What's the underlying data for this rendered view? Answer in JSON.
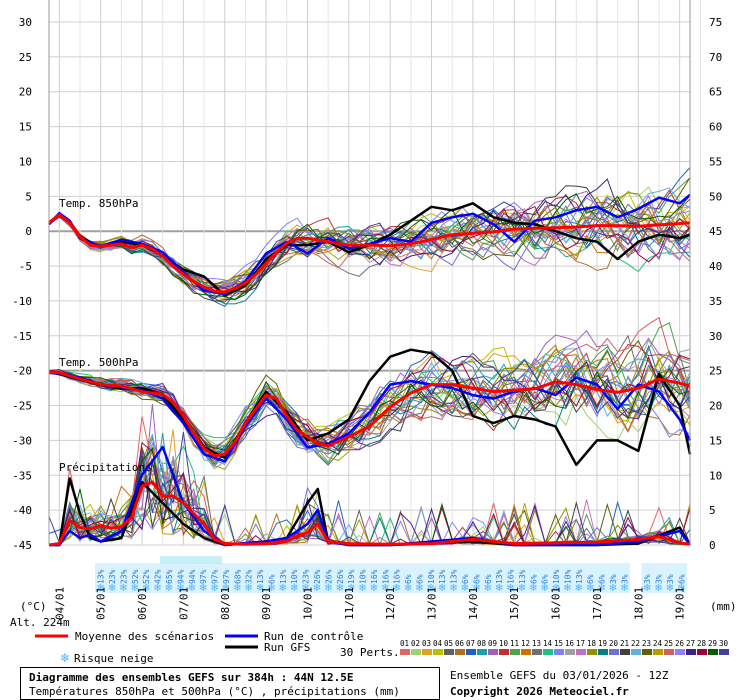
{
  "chart_data": {
    "type": "line",
    "title": "Diagramme des ensembles GEFS sur 384h : 44N 12.5E",
    "subtitle": "Températures 850hPa et 500hPa (°C) , précipitations (mm)",
    "run_info": "Ensemble GEFS du 03/01/2026 - 12Z",
    "copyright": "Copyright 2026 Meteociel.fr",
    "y_left_unit": "(°C)",
    "y_right_unit": "(mm)",
    "altitude": "Alt. 224m",
    "y_left_ticks": [
      "30",
      "25",
      "20",
      "15",
      "10",
      "5",
      "0",
      "-5",
      "-10",
      "-15",
      "-20",
      "-25",
      "-30",
      "-35",
      "-40",
      "-45"
    ],
    "y_right_ticks": [
      "75",
      "70",
      "65",
      "60",
      "55",
      "50",
      "45",
      "40",
      "35",
      "30",
      "25",
      "20",
      "15",
      "10",
      "5",
      "0"
    ],
    "ylim": [
      -45,
      30
    ],
    "x_start_day": 3.75,
    "x_end_day": 19.25,
    "x_ticks": [
      "04/01",
      "05/01",
      "06/01",
      "07/01",
      "08/01",
      "09/01",
      "10/01",
      "11/01",
      "12/01",
      "13/01",
      "14/01",
      "15/01",
      "16/01",
      "17/01",
      "18/01",
      "19/01"
    ],
    "section_labels": {
      "t850": "Temp. 850hPa",
      "t500": "Temp. 500hPa",
      "precip": "Précipitations"
    },
    "legend": {
      "mean": "Moyenne des scénarios",
      "control": "Run de contrôle",
      "gfs": "Run GFS",
      "perts": "30 Perts.",
      "snow": "Risque neige"
    },
    "pert_labels": [
      "01",
      "02",
      "03",
      "04",
      "05",
      "06",
      "07",
      "08",
      "09",
      "10",
      "11",
      "12",
      "13",
      "14",
      "15",
      "16",
      "17",
      "18",
      "19",
      "20",
      "21",
      "22",
      "23",
      "24",
      "25",
      "26",
      "27",
      "28",
      "29",
      "30"
    ],
    "colors": {
      "mean": "#ff0000",
      "control": "#0000ff",
      "gfs": "#000000",
      "snow": "#4fb3ff",
      "pert_colors": [
        "#e06666",
        "#a0d070",
        "#e0a020",
        "#c0c000",
        "#606060",
        "#b07020",
        "#2060c0",
        "#20a0a0",
        "#a060c0",
        "#c03030",
        "#50a050",
        "#d07000",
        "#707070",
        "#20c080",
        "#8080ff",
        "#a0a0a0",
        "#c070c0",
        "#909000",
        "#008080",
        "#7070d0",
        "#404040",
        "#60b0e0",
        "#606000",
        "#b0a000",
        "#d06060",
        "#9080ff",
        "#402080",
        "#a00040",
        "#006000",
        "#4040a0"
      ]
    },
    "snow_risk": [
      "13%",
      "23%",
      "23%",
      "52%",
      "52%",
      "42%",
      "65%",
      "94%",
      "94%",
      "97%",
      "97%",
      "97%",
      "68%",
      "32%",
      "13%",
      "6%",
      "13%",
      "10%",
      "23%",
      "26%",
      "26%",
      "26%",
      "19%",
      "10%",
      "16%",
      "16%",
      "16%",
      "6%",
      "6%",
      "10%",
      "13%",
      "13%",
      "6%",
      "6%",
      "6%",
      "13%",
      "16%",
      "13%",
      "6%",
      "6%",
      "10%",
      "10%",
      "13%",
      "6%",
      "6%",
      "3%",
      "3%",
      "",
      "3%",
      "3%",
      "3%",
      "6%"
    ],
    "series": [
      {
        "name": "Moyenne des scénarios",
        "group": "t850",
        "x": [
          3.75,
          4.0,
          4.25,
          4.5,
          4.75,
          5.0,
          5.25,
          5.5,
          5.75,
          6.0,
          6.25,
          6.5,
          6.75,
          7.0,
          7.25,
          7.5,
          7.75,
          8.0,
          8.25,
          8.5,
          8.75,
          9.0,
          9.25,
          9.5,
          9.75,
          10.0,
          10.25,
          10.5,
          10.75,
          11.0,
          11.5,
          12.0,
          12.5,
          13.0,
          13.5,
          14.0,
          14.5,
          15.0,
          15.5,
          16.0,
          16.5,
          17.0,
          17.5,
          18.0,
          18.5,
          19.0,
          19.25
        ],
        "values": [
          1.2,
          2.4,
          1.2,
          -0.8,
          -2.0,
          -2.2,
          -2.0,
          -1.8,
          -2.4,
          -2.0,
          -2.6,
          -3.6,
          -5.0,
          -6.2,
          -7.2,
          -8.0,
          -8.6,
          -8.7,
          -8.2,
          -7.4,
          -6.2,
          -4.6,
          -3.0,
          -1.7,
          -1.0,
          -1.0,
          -1.3,
          -1.5,
          -1.8,
          -2.0,
          -2.0,
          -2.1,
          -1.8,
          -1.2,
          -0.5,
          -0.3,
          -0.1,
          0.3,
          0.4,
          0.5,
          0.6,
          0.8,
          0.8,
          0.7,
          0.9,
          1.1,
          1.2
        ]
      },
      {
        "name": "Run de contrôle",
        "group": "t850",
        "x": [
          3.75,
          4.0,
          4.25,
          4.5,
          5.0,
          5.5,
          6.0,
          6.5,
          7.0,
          7.5,
          8.0,
          8.5,
          9.0,
          9.5,
          10.0,
          10.5,
          11.0,
          11.5,
          12.0,
          12.5,
          13.0,
          13.5,
          14.0,
          14.5,
          15.0,
          15.5,
          16.0,
          16.5,
          17.0,
          17.5,
          18.0,
          18.5,
          19.0,
          19.25
        ],
        "values": [
          1.0,
          2.6,
          1.5,
          -1.0,
          -2.2,
          -1.2,
          -1.8,
          -3.0,
          -6.0,
          -8.5,
          -9.0,
          -7.2,
          -3.2,
          -1.5,
          -3.2,
          -1.0,
          -2.5,
          -1.8,
          -1.0,
          -1.5,
          1.2,
          2.0,
          2.5,
          1.0,
          -1.5,
          1.5,
          2.0,
          3.0,
          3.5,
          2.0,
          3.2,
          4.8,
          4.0,
          5.2
        ]
      },
      {
        "name": "Run GFS",
        "group": "t850",
        "x": [
          3.75,
          4.0,
          4.25,
          4.5,
          5.0,
          5.5,
          6.0,
          6.5,
          7.0,
          7.5,
          8.0,
          8.5,
          9.0,
          9.5,
          10.0,
          10.5,
          11.0,
          11.5,
          12.0,
          12.5,
          13.0,
          13.5,
          14.0,
          14.5,
          15.0,
          15.5,
          16.0,
          16.5,
          17.0,
          17.5,
          18.0,
          18.5,
          19.0,
          19.25
        ],
        "values": [
          1.0,
          2.5,
          1.4,
          -0.8,
          -2.3,
          -1.5,
          -2.0,
          -3.5,
          -5.5,
          -6.5,
          -9.2,
          -7.8,
          -4.0,
          -2.0,
          -2.0,
          -1.5,
          -3.0,
          -2.0,
          -0.5,
          1.5,
          3.5,
          3.0,
          4.0,
          2.0,
          1.2,
          1.0,
          0.0,
          -1.0,
          -1.5,
          -4.0,
          -1.5,
          -0.5,
          -1.0,
          -0.5
        ]
      },
      {
        "name": "Moyenne des scénarios",
        "group": "t500",
        "x": [
          3.75,
          4.0,
          4.5,
          5.0,
          5.5,
          6.0,
          6.5,
          6.75,
          7.0,
          7.25,
          7.5,
          7.75,
          8.0,
          8.25,
          8.5,
          8.75,
          9.0,
          9.25,
          9.5,
          9.75,
          10.0,
          10.25,
          10.5,
          11.0,
          11.5,
          12.0,
          12.5,
          13.0,
          13.5,
          14.0,
          14.5,
          15.0,
          15.5,
          16.0,
          16.5,
          17.0,
          17.5,
          18.0,
          18.5,
          19.0,
          19.25
        ],
        "values": [
          -20.2,
          -20.3,
          -21.2,
          -22.0,
          -22.2,
          -23.0,
          -23.4,
          -24.5,
          -26.5,
          -29.0,
          -31.2,
          -32.2,
          -32.0,
          -30.2,
          -27.5,
          -25.5,
          -23.5,
          -24.0,
          -26.5,
          -28.5,
          -29.5,
          -30.5,
          -30.8,
          -29.5,
          -28.0,
          -25.2,
          -23.2,
          -22.0,
          -22.0,
          -22.5,
          -23.0,
          -22.8,
          -22.6,
          -21.6,
          -22.0,
          -22.7,
          -23.1,
          -22.5,
          -21.2,
          -21.8,
          -22.2
        ]
      },
      {
        "name": "Run de contrôle",
        "group": "t500",
        "x": [
          3.75,
          4.0,
          4.5,
          5.0,
          5.5,
          6.0,
          6.5,
          7.0,
          7.5,
          8.0,
          8.5,
          9.0,
          9.5,
          10.0,
          10.5,
          11.0,
          11.5,
          12.0,
          12.5,
          13.0,
          13.5,
          14.0,
          14.5,
          15.0,
          15.5,
          16.0,
          16.5,
          17.0,
          17.5,
          18.0,
          18.5,
          19.0,
          19.25
        ],
        "values": [
          -20.3,
          -20.4,
          -21.0,
          -22.0,
          -22.4,
          -22.8,
          -24.0,
          -27.5,
          -32.0,
          -33.0,
          -28.0,
          -24.0,
          -27.0,
          -31.0,
          -30.5,
          -29.0,
          -26.0,
          -22.0,
          -21.5,
          -22.0,
          -22.5,
          -23.5,
          -24.0,
          -23.0,
          -22.5,
          -23.5,
          -21.0,
          -22.0,
          -25.5,
          -22.0,
          -23.0,
          -27.0,
          -30.0
        ]
      },
      {
        "name": "Run GFS",
        "group": "t500",
        "x": [
          3.75,
          4.0,
          4.5,
          5.0,
          5.5,
          6.0,
          6.5,
          7.0,
          7.5,
          8.0,
          8.5,
          9.0,
          9.5,
          10.0,
          10.5,
          11.0,
          11.5,
          12.0,
          12.5,
          13.0,
          13.5,
          14.0,
          14.5,
          15.0,
          15.5,
          16.0,
          16.5,
          17.0,
          17.5,
          18.0,
          18.5,
          19.0,
          19.25
        ],
        "values": [
          -20.2,
          -20.5,
          -21.3,
          -22.1,
          -22.6,
          -22.5,
          -23.5,
          -27.0,
          -31.0,
          -32.5,
          -27.5,
          -23.0,
          -26.0,
          -30.0,
          -29.0,
          -27.0,
          -21.5,
          -18.0,
          -17.0,
          -17.5,
          -20.0,
          -26.5,
          -27.5,
          -26.5,
          -27.0,
          -28.0,
          -33.5,
          -30.0,
          -30.0,
          -31.5,
          -20.5,
          -25.0,
          -32.0
        ]
      },
      {
        "name": "Moyenne des scénarios",
        "group": "precip",
        "axis": "right",
        "x": [
          3.75,
          4.0,
          4.25,
          4.5,
          4.75,
          5.0,
          5.25,
          5.5,
          5.75,
          6.0,
          6.25,
          6.5,
          6.75,
          7.0,
          7.25,
          7.5,
          7.75,
          8.0,
          8.5,
          9.0,
          9.5,
          10.0,
          10.25,
          10.5,
          11.0,
          12.0,
          13.0,
          14.0,
          15.0,
          16.0,
          17.0,
          18.0,
          18.5,
          19.0,
          19.25
        ],
        "values": [
          0,
          0.2,
          3.5,
          2.5,
          2.3,
          2.8,
          2.4,
          2.6,
          4.0,
          8.4,
          9.0,
          7.0,
          7.0,
          6.0,
          4.5,
          3.0,
          0.8,
          0.2,
          0.1,
          0.2,
          0.6,
          1.8,
          3.0,
          0.5,
          0.2,
          0.1,
          0.2,
          0.8,
          0.2,
          0.3,
          0.4,
          0.8,
          1.2,
          0.3,
          0.1
        ]
      },
      {
        "name": "Run de contrôle",
        "group": "precip",
        "axis": "right",
        "x": [
          3.75,
          4.0,
          4.25,
          4.5,
          4.75,
          5.0,
          5.5,
          6.0,
          6.5,
          7.0,
          7.5,
          8.0,
          9.0,
          9.5,
          10.0,
          10.25,
          10.5,
          11.0,
          12.0,
          13.0,
          14.0,
          15.0,
          16.0,
          17.0,
          18.0,
          19.0,
          19.25
        ],
        "values": [
          0,
          0,
          2.0,
          1.0,
          1.5,
          0.5,
          2.0,
          10.0,
          14.0,
          6.0,
          2.0,
          0,
          0.5,
          1.0,
          3.0,
          5.0,
          0.5,
          0,
          0,
          0.5,
          1.0,
          0,
          0,
          0,
          0.5,
          2.0,
          0
        ]
      },
      {
        "name": "Run GFS",
        "group": "precip",
        "axis": "right",
        "x": [
          3.75,
          4.0,
          4.25,
          4.5,
          4.75,
          5.0,
          5.5,
          6.0,
          6.5,
          7.0,
          7.5,
          8.0,
          9.0,
          9.5,
          10.0,
          10.25,
          10.5,
          11.0,
          12.0,
          13.0,
          14.0,
          15.0,
          16.0,
          17.0,
          18.0,
          19.0,
          19.25
        ],
        "values": [
          0,
          0,
          9.5,
          4.5,
          1.0,
          0.5,
          1.0,
          9.0,
          6.0,
          3.0,
          1.0,
          0,
          0.5,
          1.0,
          6.0,
          8.0,
          0.5,
          0,
          0,
          0.2,
          0.5,
          0,
          0,
          0,
          0.2,
          2.5,
          0
        ]
      }
    ]
  }
}
